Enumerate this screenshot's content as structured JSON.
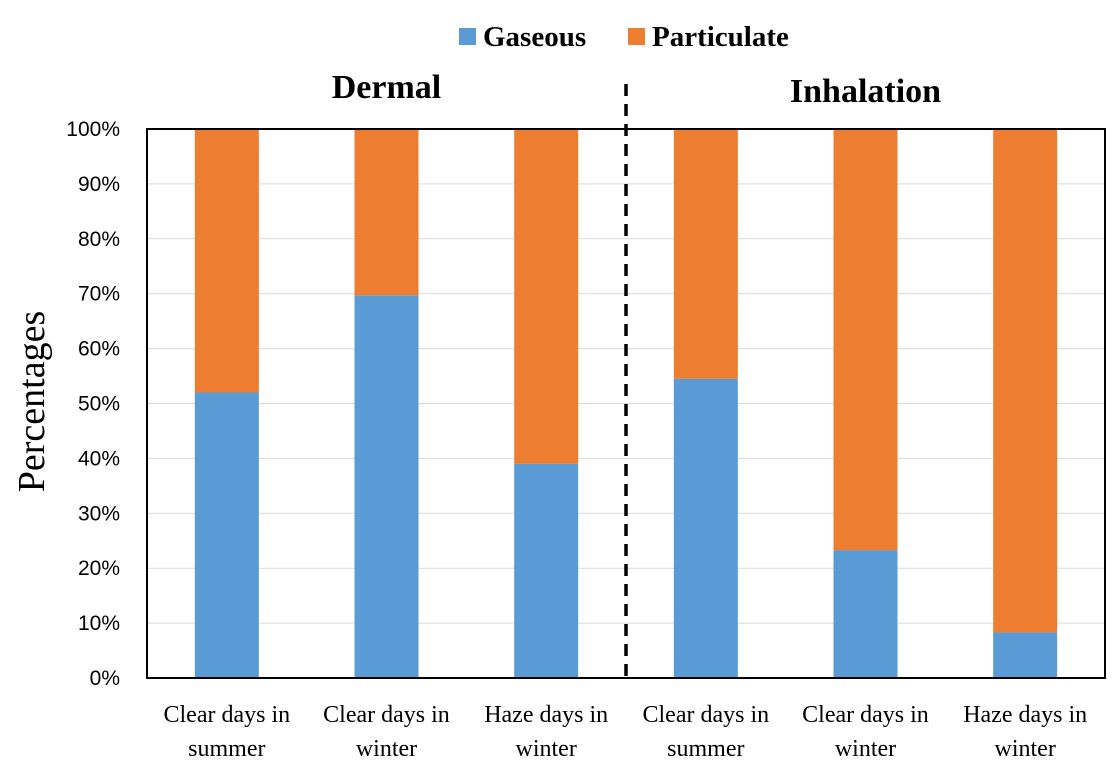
{
  "chart_data": {
    "type": "bar",
    "stacked": true,
    "percent_stacked": true,
    "ylabel": "Percentages",
    "ylim": [
      0,
      100
    ],
    "y_ticks": [
      0,
      10,
      20,
      30,
      40,
      50,
      60,
      70,
      80,
      90,
      100
    ],
    "y_tick_suffix": "%",
    "grid": true,
    "legend_position": "top-center",
    "categories": [
      [
        "Clear days in",
        "summer"
      ],
      [
        "Clear days in",
        "winter"
      ],
      [
        "Haze days in",
        "winter"
      ],
      [
        "Clear days in",
        "summer"
      ],
      [
        "Clear days in",
        "winter"
      ],
      [
        "Haze days in",
        "winter"
      ]
    ],
    "groups": [
      {
        "title": "Dermal",
        "category_indices": [
          0,
          1,
          2
        ]
      },
      {
        "title": "Inhalation",
        "category_indices": [
          3,
          4,
          5
        ]
      }
    ],
    "series": [
      {
        "name": "Gaseous",
        "color": "#5B9BD5",
        "values": [
          52,
          69.7,
          39,
          54.5,
          23.3,
          8.3
        ]
      },
      {
        "name": "Particulate",
        "color": "#ED7D31",
        "values": [
          48,
          30.3,
          61,
          45.5,
          76.7,
          91.7
        ]
      }
    ]
  }
}
